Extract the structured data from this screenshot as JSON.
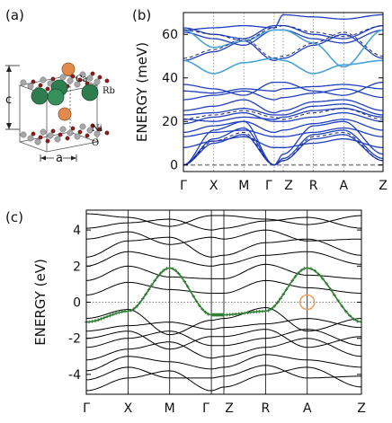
{
  "panels": {
    "a": {
      "label": "(a)",
      "atom_labels": [
        "Ca",
        "Rb",
        "Ni",
        "O"
      ],
      "lattice_labels": [
        "c",
        "a"
      ],
      "colors": {
        "Ca": "#e08a4c",
        "Rb": "#2e7d4f",
        "Ni": "#a8a8a8",
        "O": "#8b1a1a"
      }
    },
    "b": {
      "label": "(b)"
    },
    "c": {
      "label": "(c)"
    }
  },
  "chart_data": [
    {
      "panel": "b",
      "type": "line",
      "title": "",
      "ylabel": "ENERGY (meV)",
      "xlabel": "",
      "ylim": [
        -3,
        70
      ],
      "yticks": [
        0,
        20,
        40,
        60
      ],
      "k_path": [
        "Γ",
        "X",
        "M",
        "Γ",
        "Z",
        "R",
        "A",
        "Z"
      ],
      "k_positions": [
        0,
        1,
        2,
        3,
        3.3,
        4.3,
        5.3,
        6.6
      ],
      "colors": {
        "solid": "#1f3fbf",
        "dashed": "#1a237e",
        "highlight": "#4aa3d8",
        "zero": "#888888"
      },
      "grid_verticals": true,
      "zero_line": 0,
      "series": [
        {
          "style": "solid",
          "values": [
            0,
            10,
            14,
            0,
            2,
            12,
            14,
            2
          ]
        },
        {
          "style": "solid",
          "values": [
            0,
            12,
            17,
            0,
            3,
            14,
            16,
            3
          ]
        },
        {
          "style": "solid",
          "values": [
            0,
            16,
            20,
            0,
            5,
            18,
            20,
            5
          ]
        },
        {
          "style": "solid",
          "values": [
            8,
            11,
            13,
            8,
            8,
            10,
            12,
            8
          ]
        },
        {
          "style": "solid",
          "values": [
            13,
            15,
            16,
            13,
            13,
            15,
            17,
            13
          ]
        },
        {
          "style": "solid",
          "values": [
            15,
            18,
            20,
            15,
            16,
            19,
            21,
            16
          ]
        },
        {
          "style": "solid",
          "values": [
            19,
            22,
            24,
            20,
            20,
            22,
            24,
            20
          ]
        },
        {
          "style": "solid",
          "values": [
            21,
            20,
            22,
            21,
            22,
            25,
            26,
            22
          ]
        },
        {
          "style": "solid",
          "values": [
            23,
            24,
            26,
            23,
            23,
            27,
            28,
            23
          ]
        },
        {
          "style": "solid",
          "values": [
            25,
            27,
            30,
            24,
            25,
            29,
            30,
            25
          ]
        },
        {
          "style": "solid",
          "values": [
            30,
            32,
            34,
            30,
            31,
            33,
            35,
            31
          ]
        },
        {
          "style": "solid",
          "values": [
            34,
            33,
            35,
            34,
            35,
            36,
            37,
            35
          ]
        },
        {
          "style": "solid",
          "values": [
            37,
            35,
            32,
            38,
            38,
            34,
            32,
            38
          ]
        },
        {
          "style": "solid",
          "values": [
            48,
            52,
            57,
            48,
            49,
            55,
            60,
            49
          ]
        },
        {
          "style": "solid",
          "values": [
            61,
            58,
            55,
            62,
            62,
            58,
            56,
            62
          ]
        },
        {
          "style": "solid",
          "values": [
            62,
            63,
            64,
            63,
            69,
            68,
            67,
            69
          ]
        },
        {
          "style": "solid",
          "values": [
            63,
            60,
            58,
            64,
            64,
            60,
            58,
            64
          ]
        },
        {
          "style": "highlight",
          "values": [
            48,
            42,
            47,
            49,
            48,
            42,
            46,
            48
          ]
        },
        {
          "style": "highlight",
          "values": [
            62,
            54,
            57,
            62,
            62,
            56,
            45,
            62
          ]
        },
        {
          "style": "dashed",
          "values": [
            0,
            11,
            15,
            0,
            2,
            13,
            15,
            2
          ]
        },
        {
          "style": "dashed",
          "values": [
            21,
            23,
            25,
            22,
            21,
            24,
            26,
            21
          ]
        },
        {
          "style": "dashed",
          "values": [
            49,
            53,
            58,
            49,
            50,
            56,
            61,
            50
          ]
        },
        {
          "style": "dashed",
          "values": [
            62,
            60,
            57,
            63,
            64,
            61,
            59,
            64
          ]
        }
      ]
    },
    {
      "panel": "c",
      "type": "line",
      "title": "",
      "ylabel": "ENERGY (eV)",
      "xlabel": "",
      "ylim": [
        -5.1,
        5.1
      ],
      "yticks": [
        -4,
        -2,
        0,
        2,
        4
      ],
      "k_path": [
        "Γ",
        "X",
        "M",
        "Γ",
        "Z",
        "R",
        "A",
        "Z"
      ],
      "k_positions": [
        0,
        1,
        2,
        3,
        3.3,
        4.3,
        5.3,
        6.6
      ],
      "colors": {
        "bands": "#000000",
        "highlight": "#2e7d32",
        "marker": "#e8a060",
        "fermi": "#555555"
      },
      "fermi_level": 0,
      "highlight_band": {
        "values": [
          -1.1,
          -0.5,
          1.9,
          -0.7,
          -0.7,
          -0.5,
          1.9,
          -1.1
        ]
      },
      "marker": {
        "k": 5.3,
        "energy": 0
      },
      "series": [
        {
          "values": [
            -4.9,
            -4.2,
            -3.8,
            -4.9,
            -4.7,
            -4.0,
            -3.6,
            -4.7
          ]
        },
        {
          "values": [
            -4.3,
            -3.6,
            -4.2,
            -4.2,
            -4.1,
            -3.5,
            -4.2,
            -4.1
          ]
        },
        {
          "values": [
            -3.8,
            -3.0,
            -3.3,
            -3.7,
            -3.6,
            -2.9,
            -3.2,
            -3.6
          ]
        },
        {
          "values": [
            -3.2,
            -2.6,
            -2.2,
            -3.1,
            -3.0,
            -2.5,
            -2.0,
            -3.0
          ]
        },
        {
          "values": [
            -2.5,
            -2.0,
            -1.6,
            -2.4,
            -2.4,
            -2.0,
            -1.5,
            -2.4
          ]
        },
        {
          "values": [
            -2.0,
            -1.6,
            -2.6,
            -1.9,
            -1.9,
            -1.5,
            -2.5,
            -1.9
          ]
        },
        {
          "values": [
            -1.6,
            -1.3,
            -1.1,
            -1.5,
            -1.4,
            -1.2,
            -0.9,
            -1.4
          ]
        },
        {
          "values": [
            -0.9,
            -0.4,
            -1.8,
            -1.0,
            -0.9,
            -0.3,
            -1.6,
            -0.9
          ]
        },
        {
          "values": [
            0.4,
            1.1,
            0.7,
            0.5,
            0.5,
            1.2,
            0.8,
            0.5
          ]
        },
        {
          "values": [
            1.2,
            2.0,
            1.4,
            1.3,
            1.3,
            2.1,
            1.5,
            1.3
          ]
        },
        {
          "values": [
            2.0,
            2.8,
            2.4,
            2.0,
            2.1,
            2.6,
            2.8,
            2.1
          ]
        },
        {
          "values": [
            2.5,
            3.4,
            3.6,
            2.5,
            2.6,
            3.3,
            3.5,
            2.6
          ]
        },
        {
          "values": [
            3.5,
            3.9,
            3.2,
            3.6,
            3.5,
            4.0,
            3.4,
            3.5
          ]
        },
        {
          "values": [
            4.1,
            4.4,
            4.6,
            4.0,
            4.1,
            4.5,
            4.7,
            4.1
          ]
        },
        {
          "values": [
            4.9,
            4.7,
            4.2,
            4.8,
            4.8,
            4.6,
            4.3,
            4.8
          ]
        }
      ]
    }
  ]
}
